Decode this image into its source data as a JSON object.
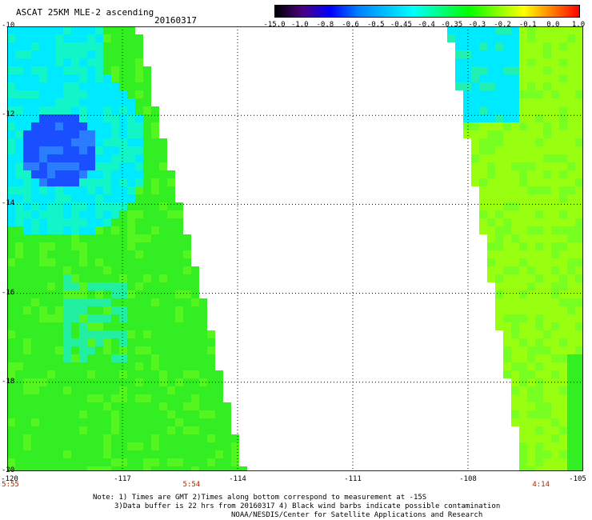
{
  "title": "ASCAT 25KM MLE-2 ascending",
  "date": "20160317",
  "colorbar": {
    "labels": [
      "-15.0",
      "-1.0",
      "-0.8",
      "-0.6",
      "-0.5",
      "-0.45",
      "-0.4",
      "-0.35",
      "-0.3",
      "-0.2",
      "-0.1",
      "0.0",
      "1.0"
    ],
    "colors": [
      "#000000",
      "#4b0082",
      "#0000ff",
      "#0080ff",
      "#00bfff",
      "#00ffff",
      "#00ff80",
      "#00ff00",
      "#80ff00",
      "#ffff00",
      "#ff8000",
      "#ff0000"
    ]
  },
  "map": {
    "lat_labels": [
      "-10",
      "-12",
      "-14",
      "-16",
      "-18",
      "-20"
    ],
    "lon_labels": [
      "-120",
      "-117",
      "-114",
      "-111",
      "-108",
      "-105"
    ],
    "lat_range": [
      -20,
      -10
    ],
    "lon_range": [
      -120,
      -105
    ],
    "grid": true,
    "swath_colors": {
      "deep": "#1a4fff",
      "cyan": "#00eaff",
      "green": "#33ee22",
      "yellowgreen": "#99ff11"
    }
  },
  "times": [
    {
      "label": "5:55",
      "lon": -120
    },
    {
      "label": "5:54",
      "lon": -115.2
    },
    {
      "label": "4:14",
      "lon": -106.1
    }
  ],
  "notes": [
    "Note: 1) Times are GMT 2)Times along bottom correspond to measurement at -15S",
    "3)Data buffer is 22 hrs from 20160317 4) Black wind barbs indicate possible contamination",
    "NOAA/NESDIS/Center for Satellite Applications and Research"
  ]
}
